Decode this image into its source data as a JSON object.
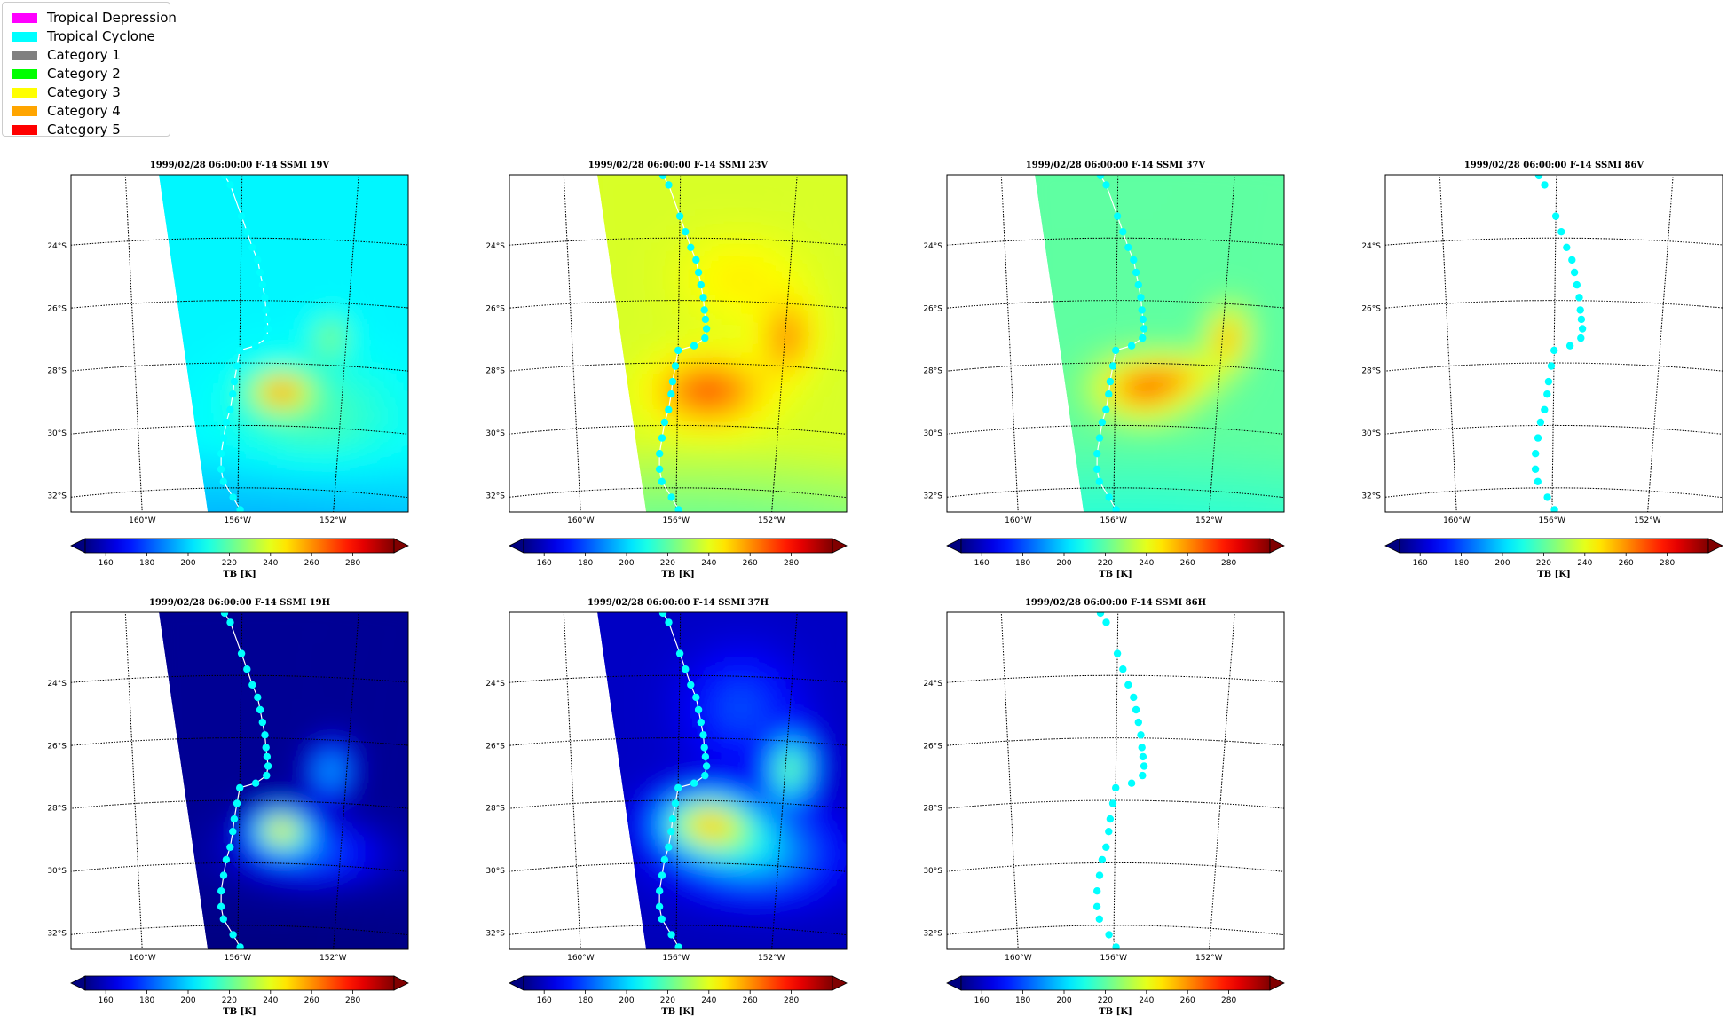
{
  "legend": {
    "items": [
      {
        "label": "Tropical Depression",
        "color": "#ff00ff"
      },
      {
        "label": "Tropical Cyclone",
        "color": "#00ffff"
      },
      {
        "label": "Category 1",
        "color": "#808080"
      },
      {
        "label": "Category 2",
        "color": "#00ff00"
      },
      {
        "label": "Category 3",
        "color": "#ffff00"
      },
      {
        "label": "Category 4",
        "color": "#ffa500"
      },
      {
        "label": "Category 5",
        "color": "#ff0000"
      }
    ]
  },
  "chart_data": {
    "type": "heatmap",
    "colormap": "jet",
    "track_color": "#00ffff",
    "track_line_color": "#ffffff",
    "lat_ticks": [
      "24°S",
      "26°S",
      "28°S",
      "30°S",
      "32°S"
    ],
    "lon_ticks": [
      "160°W",
      "156°W",
      "152°W"
    ],
    "track_points": [
      [
        -156.6,
        -22.0
      ],
      [
        -156.4,
        -22.3
      ],
      [
        -156.0,
        -23.3
      ],
      [
        -155.8,
        -23.8
      ],
      [
        -155.6,
        -24.3
      ],
      [
        -155.4,
        -24.7
      ],
      [
        -155.3,
        -25.1
      ],
      [
        -155.2,
        -25.5
      ],
      [
        -155.1,
        -25.9
      ],
      [
        -155.05,
        -26.3
      ],
      [
        -155.0,
        -26.6
      ],
      [
        -154.95,
        -26.9
      ],
      [
        -155.0,
        -27.2
      ],
      [
        -155.4,
        -27.45
      ],
      [
        -156.0,
        -27.6
      ],
      [
        -156.1,
        -28.1
      ],
      [
        -156.2,
        -28.6
      ],
      [
        -156.25,
        -29.0
      ],
      [
        -156.35,
        -29.5
      ],
      [
        -156.5,
        -29.9
      ],
      [
        -156.6,
        -30.4
      ],
      [
        -156.7,
        -30.9
      ],
      [
        -156.7,
        -31.4
      ],
      [
        -156.6,
        -31.8
      ],
      [
        -156.2,
        -32.3
      ],
      [
        -155.9,
        -32.7
      ]
    ],
    "panels": [
      {
        "title": "1999/02/28 06:00:00  F-14 SSMI 19V",
        "channel": "19V",
        "colorbar": {
          "ticks": [
            160,
            180,
            200,
            220,
            240,
            260,
            280
          ],
          "label": "TB [K]"
        }
      },
      {
        "title": "1999/02/28 06:00:00  F-14 SSMI 23V",
        "channel": "23V",
        "colorbar": {
          "ticks": [
            160,
            180,
            200,
            220,
            240,
            260,
            280
          ],
          "label": "TB [K]"
        }
      },
      {
        "title": "1999/02/28 06:00:00  F-14 SSMI 37V",
        "channel": "37V",
        "colorbar": {
          "ticks": [
            160,
            180,
            200,
            220,
            240,
            260,
            280
          ],
          "label": "TB [K]"
        }
      },
      {
        "title": "1999/02/28 06:00:00  F-14 SSMI 86V",
        "channel": "86V",
        "colorbar": {
          "ticks": [
            160,
            180,
            200,
            220,
            240,
            260,
            280
          ],
          "label": "TB [K]"
        }
      },
      {
        "title": "1999/02/28 06:00:00  F-14 SSMI 19H",
        "channel": "19H",
        "colorbar": {
          "ticks": [
            160,
            180,
            200,
            220,
            240,
            260,
            280
          ],
          "label": "TB [K]"
        }
      },
      {
        "title": "1999/02/28 06:00:00  F-14 SSMI 37H",
        "channel": "37H",
        "colorbar": {
          "ticks": [
            160,
            180,
            200,
            220,
            240,
            260,
            280
          ],
          "label": "TB [K]"
        }
      },
      {
        "title": "1999/02/28 06:00:00  F-14 SSMI 86H",
        "channel": "86H",
        "colorbar": {
          "ticks": [
            160,
            180,
            200,
            220,
            240,
            260,
            280
          ],
          "label": "TB [K]"
        }
      }
    ]
  }
}
